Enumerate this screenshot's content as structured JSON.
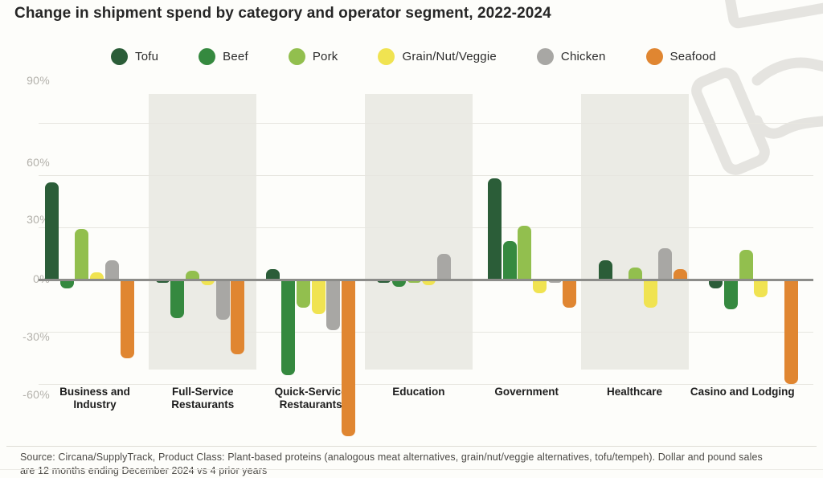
{
  "title": "Change in shipment spend by category and operator segment, 2022-2024",
  "source_note": "Source: Circana/SupplyTrack, Product Class: Plant-based proteins (analogous meat alternatives, grain/nut/veggie alternatives, tofu/tempeh). Dollar and pound sales are 12 months ending December 2024 vs 4 prior years",
  "colors": {
    "background": "#fdfdfa",
    "band": "#ebebe5",
    "gridline": "#e7e6e0",
    "zero_line": "#8c8c89",
    "tick_text": "#b3b1ab",
    "watermark": "#e5e4e0"
  },
  "chart_data": {
    "type": "bar",
    "title": "Change in shipment spend by category and operator segment, 2022-2024",
    "unit": "%",
    "categories": [
      "Business and Industry",
      "Full-Service Restaurants",
      "Quick-Service Restaurants",
      "Education",
      "Government",
      "Healthcare",
      "Casino and Lodging"
    ],
    "series": [
      {
        "name": "Tofu",
        "color": "#2b5d38",
        "values": [
          56,
          -2,
          6,
          -2,
          58,
          11,
          -5
        ]
      },
      {
        "name": "Beef",
        "color": "#35893f",
        "values": [
          -5,
          -22,
          -55,
          -4,
          22,
          -1,
          -17
        ]
      },
      {
        "name": "Pork",
        "color": "#92bf4e",
        "values": [
          29,
          5,
          -16,
          -2,
          31,
          7,
          17
        ]
      },
      {
        "name": "Grain/Nut/Veggie",
        "color": "#f0e351",
        "values": [
          4,
          -3,
          -20,
          -3,
          -8,
          -16,
          -10
        ]
      },
      {
        "name": "Chicken",
        "color": "#a8a7a4",
        "values": [
          11,
          -23,
          -29,
          15,
          -2,
          18,
          0
        ]
      },
      {
        "name": "Seafood",
        "color": "#e08631",
        "values": [
          -45,
          -43,
          -90,
          -1,
          -16,
          6,
          -60
        ]
      }
    ],
    "y_axis": {
      "ticks": [
        "90%",
        "60%",
        "30%",
        "0%",
        "-30%",
        "-60%"
      ],
      "tick_values": [
        90,
        60,
        30,
        0,
        -30,
        -60
      ],
      "min": -60,
      "max": 90
    },
    "shaded_category_indexes": [
      1,
      3,
      5
    ],
    "grid": true,
    "legend_position": "top"
  }
}
